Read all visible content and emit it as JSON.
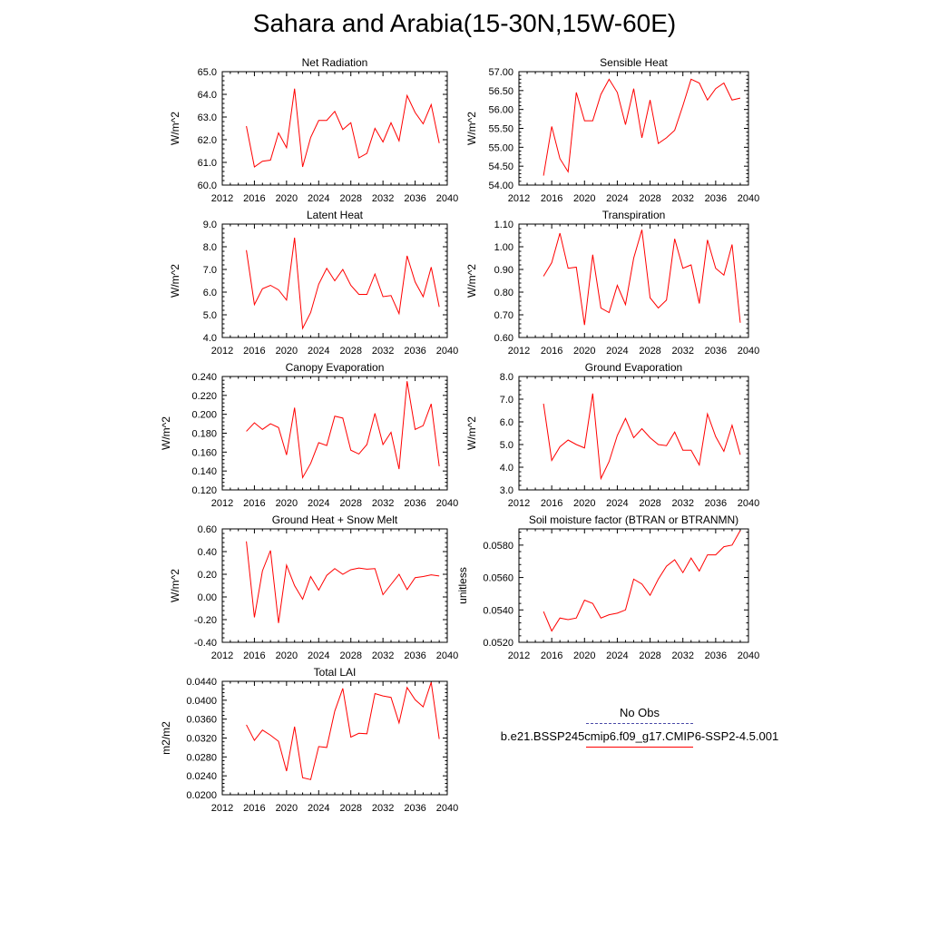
{
  "title": "Sahara and Arabia(15-30N,15W-60E)",
  "legend": {
    "obs_label": "No Obs",
    "obs_color": "#4a4aa8",
    "case_label": "b.e21.BSSP245cmip6.f09_g17.CMIP6-SSP2-4.5.001",
    "case_color": "#ff0000"
  },
  "chart_data": [
    {
      "type": "line",
      "title": "Net Radiation",
      "ylabel": "W/m^2",
      "xlim": [
        2012,
        2040
      ],
      "ylim": [
        60.0,
        65.0
      ],
      "xticks": [
        2012,
        2016,
        2020,
        2024,
        2028,
        2032,
        2036,
        2040
      ],
      "yticks": [
        60.0,
        61.0,
        62.0,
        63.0,
        64.0,
        65.0
      ],
      "ydec": 1,
      "x": [
        2015,
        2016,
        2017,
        2018,
        2019,
        2020,
        2021,
        2022,
        2023,
        2024,
        2025,
        2026,
        2027,
        2028,
        2029,
        2030,
        2031,
        2032,
        2033,
        2034,
        2035,
        2036,
        2037,
        2038,
        2039
      ],
      "series": [
        {
          "values": [
            62.6,
            60.8,
            61.05,
            61.1,
            62.3,
            61.65,
            64.25,
            60.8,
            62.1,
            62.85,
            62.85,
            63.25,
            62.45,
            62.75,
            61.2,
            61.4,
            62.5,
            61.9,
            62.75,
            61.95,
            63.95,
            63.2,
            62.7,
            63.55,
            61.85
          ]
        }
      ]
    },
    {
      "type": "line",
      "title": "Sensible Heat",
      "ylabel": "W/m^2",
      "xlim": [
        2012,
        2040
      ],
      "ylim": [
        54.0,
        57.0
      ],
      "xticks": [
        2012,
        2016,
        2020,
        2024,
        2028,
        2032,
        2036,
        2040
      ],
      "yticks": [
        54.0,
        54.5,
        55.0,
        55.5,
        56.0,
        56.5,
        57.0
      ],
      "ydec": 2,
      "x": [
        2015,
        2016,
        2017,
        2018,
        2019,
        2020,
        2021,
        2022,
        2023,
        2024,
        2025,
        2026,
        2027,
        2028,
        2029,
        2030,
        2031,
        2032,
        2033,
        2034,
        2035,
        2036,
        2037,
        2038,
        2039
      ],
      "series": [
        {
          "values": [
            54.25,
            55.55,
            54.7,
            54.35,
            56.45,
            55.7,
            55.7,
            56.4,
            56.8,
            56.45,
            55.6,
            56.55,
            55.25,
            56.25,
            55.1,
            55.25,
            55.45,
            56.1,
            56.8,
            56.7,
            56.25,
            56.55,
            56.7,
            56.25,
            56.3
          ]
        }
      ]
    },
    {
      "type": "line",
      "title": "Latent Heat",
      "ylabel": "W/m^2",
      "xlim": [
        2012,
        2040
      ],
      "ylim": [
        4.0,
        9.0
      ],
      "xticks": [
        2012,
        2016,
        2020,
        2024,
        2028,
        2032,
        2036,
        2040
      ],
      "yticks": [
        4.0,
        5.0,
        6.0,
        7.0,
        8.0,
        9.0
      ],
      "ydec": 1,
      "x": [
        2015,
        2016,
        2017,
        2018,
        2019,
        2020,
        2021,
        2022,
        2023,
        2024,
        2025,
        2026,
        2027,
        2028,
        2029,
        2030,
        2031,
        2032,
        2033,
        2034,
        2035,
        2036,
        2037,
        2038,
        2039
      ],
      "series": [
        {
          "values": [
            7.85,
            5.45,
            6.15,
            6.3,
            6.1,
            5.65,
            8.4,
            4.4,
            5.1,
            6.35,
            7.05,
            6.5,
            7.0,
            6.3,
            5.9,
            5.9,
            6.8,
            5.8,
            5.85,
            5.05,
            7.6,
            6.45,
            5.8,
            7.1,
            5.35
          ]
        }
      ]
    },
    {
      "type": "line",
      "title": "Transpiration",
      "ylabel": "W/m^2",
      "xlim": [
        2012,
        2040
      ],
      "ylim": [
        0.6,
        1.1
      ],
      "xticks": [
        2012,
        2016,
        2020,
        2024,
        2028,
        2032,
        2036,
        2040
      ],
      "yticks": [
        0.6,
        0.7,
        0.8,
        0.9,
        1.0,
        1.1
      ],
      "ydec": 2,
      "x": [
        2015,
        2016,
        2017,
        2018,
        2019,
        2020,
        2021,
        2022,
        2023,
        2024,
        2025,
        2026,
        2027,
        2028,
        2029,
        2030,
        2031,
        2032,
        2033,
        2034,
        2035,
        2036,
        2037,
        2038,
        2039
      ],
      "series": [
        {
          "values": [
            0.87,
            0.93,
            1.06,
            0.905,
            0.91,
            0.655,
            0.965,
            0.73,
            0.71,
            0.83,
            0.745,
            0.95,
            1.075,
            0.775,
            0.73,
            0.765,
            1.035,
            0.905,
            0.92,
            0.75,
            1.03,
            0.905,
            0.875,
            1.01,
            0.665
          ]
        }
      ]
    },
    {
      "type": "line",
      "title": "Canopy Evaporation",
      "ylabel": "W/m^2",
      "xlim": [
        2012,
        2040
      ],
      "ylim": [
        0.12,
        0.24
      ],
      "xticks": [
        2012,
        2016,
        2020,
        2024,
        2028,
        2032,
        2036,
        2040
      ],
      "yticks": [
        0.12,
        0.14,
        0.16,
        0.18,
        0.2,
        0.22,
        0.24
      ],
      "ydec": 3,
      "x": [
        2015,
        2016,
        2017,
        2018,
        2019,
        2020,
        2021,
        2022,
        2023,
        2024,
        2025,
        2026,
        2027,
        2028,
        2029,
        2030,
        2031,
        2032,
        2033,
        2034,
        2035,
        2036,
        2037,
        2038,
        2039
      ],
      "series": [
        {
          "values": [
            0.182,
            0.191,
            0.184,
            0.19,
            0.186,
            0.157,
            0.207,
            0.133,
            0.148,
            0.17,
            0.167,
            0.198,
            0.196,
            0.162,
            0.158,
            0.168,
            0.201,
            0.168,
            0.181,
            0.142,
            0.235,
            0.184,
            0.188,
            0.211,
            0.145
          ]
        }
      ]
    },
    {
      "type": "line",
      "title": "Ground Evaporation",
      "ylabel": "W/m^2",
      "xlim": [
        2012,
        2040
      ],
      "ylim": [
        3.0,
        8.0
      ],
      "xticks": [
        2012,
        2016,
        2020,
        2024,
        2028,
        2032,
        2036,
        2040
      ],
      "yticks": [
        3.0,
        4.0,
        5.0,
        6.0,
        7.0,
        8.0
      ],
      "ydec": 1,
      "x": [
        2015,
        2016,
        2017,
        2018,
        2019,
        2020,
        2021,
        2022,
        2023,
        2024,
        2025,
        2026,
        2027,
        2028,
        2029,
        2030,
        2031,
        2032,
        2033,
        2034,
        2035,
        2036,
        2037,
        2038,
        2039
      ],
      "series": [
        {
          "values": [
            6.8,
            4.3,
            4.9,
            5.2,
            5.0,
            4.85,
            7.25,
            3.5,
            4.25,
            5.4,
            6.15,
            5.3,
            5.7,
            5.3,
            5.0,
            4.95,
            5.55,
            4.75,
            4.75,
            4.1,
            6.35,
            5.35,
            4.7,
            5.85,
            4.55
          ]
        }
      ]
    },
    {
      "type": "line",
      "title": "Ground Heat + Snow Melt",
      "ylabel": "W/m^2",
      "xlim": [
        2012,
        2040
      ],
      "ylim": [
        -0.4,
        0.6
      ],
      "xticks": [
        2012,
        2016,
        2020,
        2024,
        2028,
        2032,
        2036,
        2040
      ],
      "yticks": [
        -0.4,
        -0.2,
        0.0,
        0.2,
        0.4,
        0.6
      ],
      "ydec": 2,
      "x": [
        2015,
        2016,
        2017,
        2018,
        2019,
        2020,
        2021,
        2022,
        2023,
        2024,
        2025,
        2026,
        2027,
        2028,
        2029,
        2030,
        2031,
        2032,
        2033,
        2034,
        2035,
        2036,
        2037,
        2038,
        2039
      ],
      "series": [
        {
          "values": [
            0.49,
            -0.18,
            0.23,
            0.41,
            -0.23,
            0.28,
            0.1,
            -0.02,
            0.18,
            0.06,
            0.19,
            0.25,
            0.2,
            0.24,
            0.255,
            0.245,
            0.25,
            0.02,
            0.11,
            0.2,
            0.065,
            0.17,
            0.18,
            0.195,
            0.185
          ]
        }
      ]
    },
    {
      "type": "line",
      "title": "Soil moisture factor (BTRAN or BTRANMN)",
      "ylabel": "unitless",
      "xlim": [
        2012,
        2040
      ],
      "ylim": [
        0.052,
        0.059
      ],
      "xticks": [
        2012,
        2016,
        2020,
        2024,
        2028,
        2032,
        2036,
        2040
      ],
      "yticks": [
        0.052,
        0.054,
        0.056,
        0.058
      ],
      "ydec": 4,
      "x": [
        2015,
        2016,
        2017,
        2018,
        2019,
        2020,
        2021,
        2022,
        2023,
        2024,
        2025,
        2026,
        2027,
        2028,
        2029,
        2030,
        2031,
        2032,
        2033,
        2034,
        2035,
        2036,
        2037,
        2038,
        2039
      ],
      "series": [
        {
          "values": [
            0.0539,
            0.0527,
            0.0535,
            0.0534,
            0.0535,
            0.0546,
            0.0544,
            0.0535,
            0.0537,
            0.0538,
            0.054,
            0.0559,
            0.0556,
            0.0549,
            0.0559,
            0.0567,
            0.0571,
            0.0563,
            0.0572,
            0.0564,
            0.0574,
            0.0574,
            0.0579,
            0.058,
            0.0589
          ]
        }
      ]
    },
    {
      "type": "line",
      "title": "Total LAI",
      "ylabel": "m2/m2",
      "xlim": [
        2012,
        2040
      ],
      "ylim": [
        0.02,
        0.044
      ],
      "xticks": [
        2012,
        2016,
        2020,
        2024,
        2028,
        2032,
        2036,
        2040
      ],
      "yticks": [
        0.02,
        0.024,
        0.028,
        0.032,
        0.036,
        0.04,
        0.044
      ],
      "ydec": 4,
      "x": [
        2015,
        2016,
        2017,
        2018,
        2019,
        2020,
        2021,
        2022,
        2023,
        2024,
        2025,
        2026,
        2027,
        2028,
        2029,
        2030,
        2031,
        2032,
        2033,
        2034,
        2035,
        2036,
        2037,
        2038,
        2039
      ],
      "series": [
        {
          "values": [
            0.0348,
            0.0315,
            0.0337,
            0.0326,
            0.0313,
            0.025,
            0.0344,
            0.0236,
            0.0232,
            0.0302,
            0.03,
            0.0377,
            0.0425,
            0.0322,
            0.033,
            0.0329,
            0.0414,
            0.0409,
            0.0406,
            0.0352,
            0.0427,
            0.0401,
            0.0386,
            0.0438,
            0.0318
          ]
        }
      ]
    }
  ]
}
